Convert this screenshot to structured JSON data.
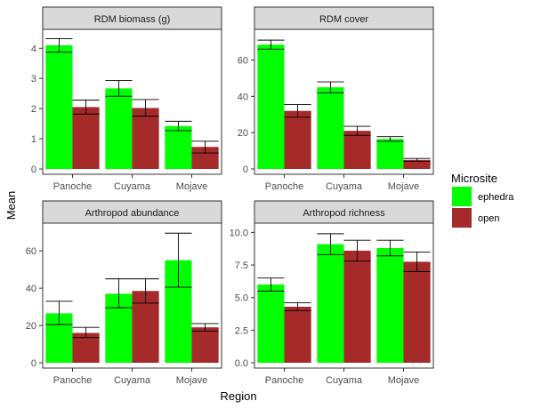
{
  "chart_data": {
    "type": "bar",
    "ylabel": "Mean",
    "xlabel": "Region",
    "legend": {
      "title": "Microsite",
      "position": "right",
      "entries": [
        {
          "label": "ephedra",
          "color": "#00ff00"
        },
        {
          "label": "open",
          "color": "#a52a2a"
        }
      ]
    },
    "categories": [
      "Panoche",
      "Cuyama",
      "Mojave"
    ],
    "facets": [
      {
        "title": "RDM biomass (g)",
        "ylim": [
          0,
          4.45
        ],
        "yticks": [
          0,
          1,
          2,
          3,
          4
        ],
        "ytick_labels": [
          "0",
          "1",
          "2",
          "3",
          "4"
        ],
        "series": [
          {
            "name": "ephedra",
            "values": [
              4.1,
              2.67,
              1.42
            ],
            "err_low": [
              3.87,
              2.41,
              1.27
            ],
            "err_high": [
              4.32,
              2.93,
              1.58
            ]
          },
          {
            "name": "open",
            "values": [
              2.05,
              2.02,
              0.73
            ],
            "err_low": [
              1.82,
              1.75,
              0.53
            ],
            "err_high": [
              2.28,
              2.3,
              0.92
            ]
          }
        ]
      },
      {
        "title": "RDM cover",
        "ylim": [
          0,
          74
        ],
        "yticks": [
          0,
          20,
          40,
          60
        ],
        "ytick_labels": [
          "0",
          "20",
          "40",
          "60"
        ],
        "series": [
          {
            "name": "ephedra",
            "values": [
              68.5,
              45.0,
              16.5
            ],
            "err_low": [
              66.0,
              42.0,
              15.2
            ],
            "err_high": [
              71.0,
              48.0,
              17.8
            ]
          },
          {
            "name": "open",
            "values": [
              32.0,
              21.0,
              5.0
            ],
            "err_low": [
              28.5,
              18.5,
              4.2
            ],
            "err_high": [
              35.5,
              23.5,
              5.8
            ]
          }
        ]
      },
      {
        "title": "Arthropod abundance",
        "ylim": [
          0,
          72
        ],
        "yticks": [
          0,
          20,
          40,
          60
        ],
        "ytick_labels": [
          "0",
          "20",
          "40",
          "60"
        ],
        "series": [
          {
            "name": "ephedra",
            "values": [
              26.5,
              37.0,
              55.0
            ],
            "err_low": [
              20.5,
              29.5,
              40.5
            ],
            "err_high": [
              33.0,
              45.0,
              69.5
            ]
          },
          {
            "name": "open",
            "values": [
              16.0,
              38.5,
              19.0
            ],
            "err_low": [
              13.5,
              32.0,
              17.0
            ],
            "err_high": [
              19.0,
              45.0,
              21.0
            ]
          }
        ]
      },
      {
        "title": "Arthropod richness",
        "ylim": [
          0,
          10.3
        ],
        "yticks": [
          0,
          2.5,
          5,
          7.5,
          10
        ],
        "ytick_labels": [
          "0.0",
          "2.5",
          "5.0",
          "7.5",
          "10.0"
        ],
        "series": [
          {
            "name": "ephedra",
            "values": [
              6.0,
              9.1,
              8.8
            ],
            "err_low": [
              5.5,
              8.3,
              8.2
            ],
            "err_high": [
              6.5,
              9.9,
              9.4
            ]
          },
          {
            "name": "open",
            "values": [
              4.3,
              8.6,
              7.75
            ],
            "err_low": [
              4.0,
              7.8,
              7.0
            ],
            "err_high": [
              4.6,
              9.4,
              8.5
            ]
          }
        ]
      }
    ]
  }
}
